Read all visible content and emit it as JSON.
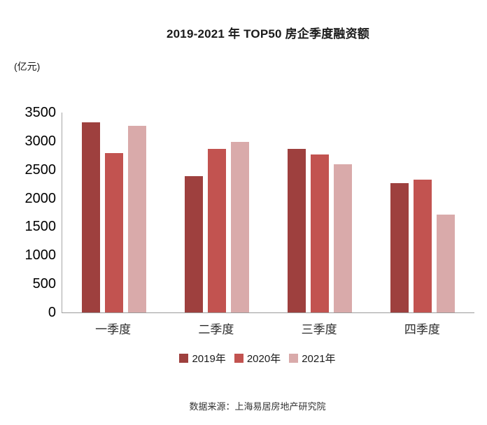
{
  "title": "2019-2021 年 TOP50 房企季度融资额",
  "unit_label": "(亿元)",
  "source": "数据来源：上海易居房地产研究院",
  "chart_data": {
    "type": "bar",
    "title": "2019-2021 年 TOP50 房企季度融资额",
    "ylabel": "(亿元)",
    "categories": [
      "一季度",
      "二季度",
      "三季度",
      "四季度"
    ],
    "series": [
      {
        "name": "2019年",
        "color": "#9E403E",
        "values": [
          3330,
          2390,
          2870,
          2260
        ]
      },
      {
        "name": "2020年",
        "color": "#C25350",
        "values": [
          2790,
          2870,
          2770,
          2330
        ]
      },
      {
        "name": "2021年",
        "color": "#D9AAAA",
        "values": [
          3270,
          2990,
          2600,
          1720
        ]
      }
    ],
    "ylim": [
      0,
      3500
    ],
    "ytick_step": 500,
    "grid": false,
    "legend_position": "bottom"
  }
}
